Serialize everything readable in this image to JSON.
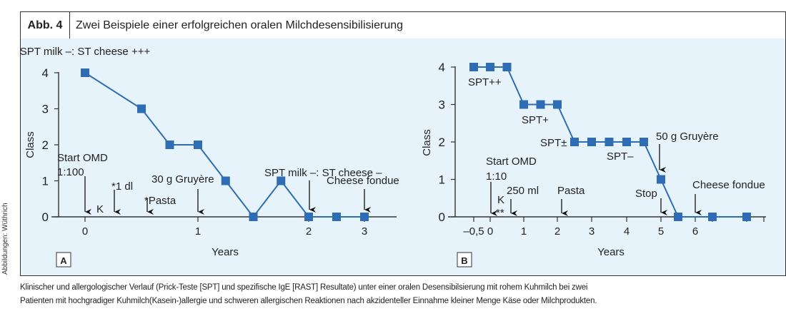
{
  "figure": {
    "label": "Abb. 4",
    "title": "Zwei Beispiele einer erfolgreichen oralen Milchdesensibilisierung",
    "credit": "Abbildungen: Wüthrich",
    "caption_lines": [
      "Klinischer und allergologischer Verlauf (Prick-Teste [SPT] und spezifische IgE [RAST] Resultate) unter einer oralen Desensibilsierung mit rohem Kuhmilch bei zwei",
      "Patienten mit hochgradiger Kuhmilch(Kasein-)allergie und schweren allergischen Reaktionen nach akzidenteller Einnahme kleiner Menge Käse oder Milchprodukten."
    ],
    "colors": {
      "series": "#2e6db4",
      "background": "#e6f3fb",
      "axis": "#333333"
    }
  },
  "chart_data": [
    {
      "type": "line",
      "panel": "A",
      "xlabel": "Years",
      "ylabel": "Class",
      "xticks": [
        "0",
        "1",
        "2",
        "3"
      ],
      "yticks": [
        "0",
        "1",
        "2",
        "3",
        "4"
      ],
      "ylim": [
        0,
        4
      ],
      "xlim": [
        -0.3,
        3.3
      ],
      "x": [
        0,
        0.5,
        0.75,
        1,
        1.25,
        1.5,
        1.75,
        2,
        2.5,
        3
      ],
      "values": [
        4,
        3,
        2,
        2,
        1,
        0,
        1,
        0,
        0,
        0
      ],
      "annotations": [
        {
          "text": "SPT milk –: ST cheese +++",
          "x": 0,
          "kind": "label"
        },
        {
          "text": "Start OMD",
          "x": 0,
          "kind": "arrow"
        },
        {
          "text": "1:100",
          "x": 0,
          "kind": "label"
        },
        {
          "text": "K",
          "x": 0.17,
          "kind": "label"
        },
        {
          "text": "*1 dl",
          "x": 0.26,
          "kind": "arrow"
        },
        {
          "text": "*Pasta",
          "x": 0.56,
          "kind": "arrow"
        },
        {
          "text": "30 g Gruyère",
          "x": 1,
          "kind": "arrow"
        },
        {
          "text": "SPT milk –: ST cheese –",
          "x": 2,
          "kind": "arrow"
        },
        {
          "text": "Cheese fondue",
          "x": 3,
          "kind": "arrow"
        }
      ]
    },
    {
      "type": "line",
      "panel": "B",
      "xlabel": "Years",
      "ylabel": "Class",
      "xticks": [
        "–0,5",
        "0",
        "1",
        "2",
        "3",
        "4",
        "5",
        "6"
      ],
      "yticks": [
        "0",
        "1",
        "2",
        "3",
        "4"
      ],
      "ylim": [
        0,
        4
      ],
      "xlim": [
        -0.8,
        8.1
      ],
      "x": [
        -0.5,
        0,
        0.5,
        1,
        1.5,
        2,
        2.5,
        3,
        3.5,
        4,
        4.5,
        5,
        5.5,
        6.5,
        7.5
      ],
      "values": [
        4,
        4,
        4,
        3,
        3,
        3,
        2,
        2,
        2,
        2,
        2,
        1,
        0,
        0,
        0
      ],
      "annotations": [
        {
          "text": "SPT++",
          "x": 0,
          "kind": "label"
        },
        {
          "text": "SPT+",
          "x": 1.5,
          "kind": "label"
        },
        {
          "text": "SPT±",
          "x": 2.5,
          "kind": "label"
        },
        {
          "text": "SPT–",
          "x": 3.5,
          "kind": "label"
        },
        {
          "text": "50 g Gruyère",
          "x": 5,
          "kind": "arrow"
        },
        {
          "text": "Start OMD",
          "x": 0,
          "kind": "arrow"
        },
        {
          "text": "1:10",
          "x": 0,
          "kind": "label"
        },
        {
          "text": "K",
          "x": 0.2,
          "kind": "label"
        },
        {
          "text": "**",
          "x": 0.2,
          "kind": "label"
        },
        {
          "text": "250 ml",
          "x": 0.6,
          "kind": "arrow"
        },
        {
          "text": "Pasta",
          "x": 2.1,
          "kind": "arrow"
        },
        {
          "text": "Stop",
          "x": 5,
          "kind": "arrow"
        },
        {
          "text": "Cheese fondue",
          "x": 6,
          "kind": "arrow"
        }
      ]
    }
  ]
}
